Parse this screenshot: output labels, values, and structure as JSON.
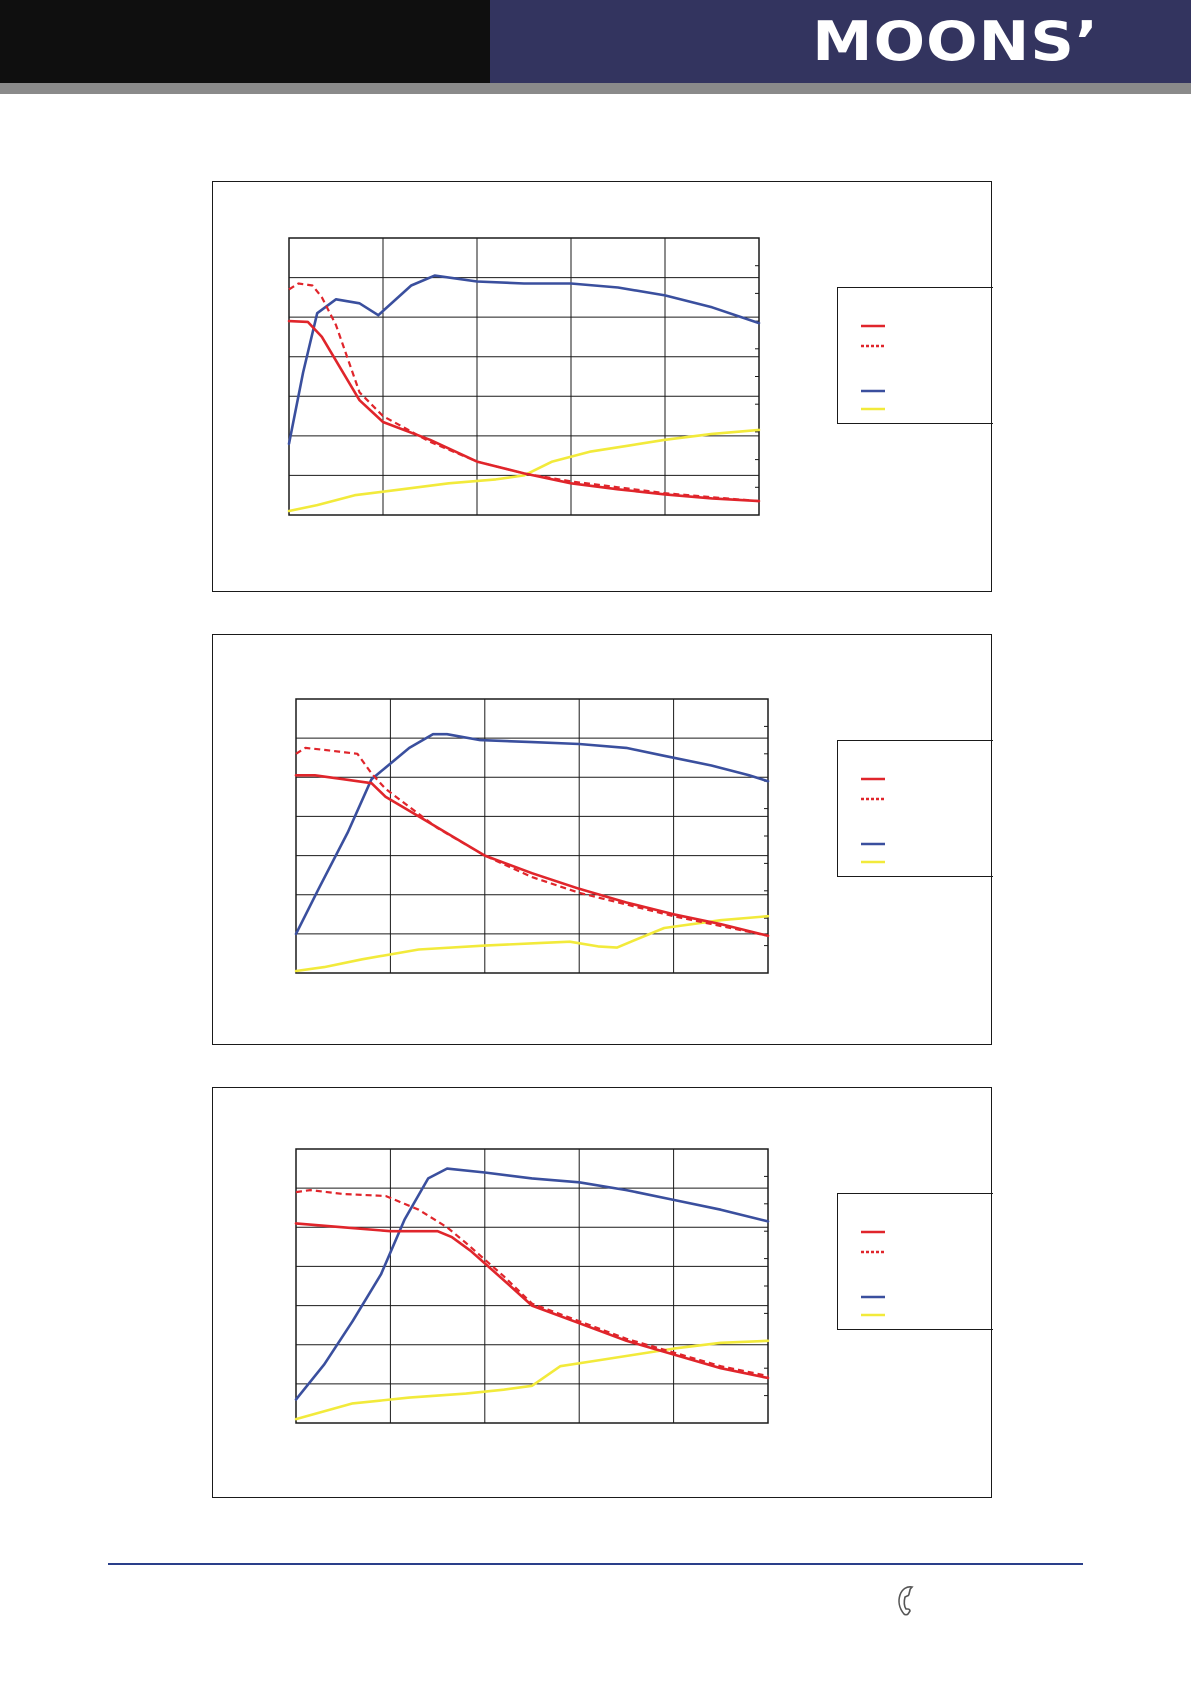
{
  "header": {
    "logo_text": "MOONS’",
    "colors": {
      "left_band": "#0f0f0f",
      "right_band": "#33345f",
      "rule": "#8a8a8a"
    }
  },
  "footer": {
    "icon": "phone-icon",
    "rule_color": "#2a3f8a"
  },
  "series_style": [
    {
      "id": "s1",
      "color": "#e0252b",
      "dash": ""
    },
    {
      "id": "s2",
      "color": "#e0252b",
      "dash": "6,4"
    },
    {
      "id": "s3",
      "color": "#3a4f9e",
      "dash": ""
    },
    {
      "id": "s4",
      "color": "#f2ea3b",
      "dash": ""
    }
  ],
  "chart_data": [
    {
      "type": "line",
      "title": "",
      "xlabel": "",
      "ylabel": "",
      "xlim": [
        0,
        5
      ],
      "ylim": [
        0,
        7
      ],
      "grid": true,
      "legend_placement": "right",
      "series": [
        {
          "values": [
            [
              0,
              4.9
            ],
            [
              0.2,
              4.88
            ],
            [
              0.35,
              4.5
            ],
            [
              0.5,
              3.9
            ],
            [
              0.75,
              2.9
            ],
            [
              1,
              2.35
            ],
            [
              1.5,
              1.9
            ],
            [
              2,
              1.35
            ],
            [
              2.5,
              1.05
            ],
            [
              3,
              0.8
            ],
            [
              3.5,
              0.65
            ],
            [
              4,
              0.52
            ],
            [
              4.5,
              0.42
            ],
            [
              5,
              0.35
            ]
          ]
        },
        {
          "values": [
            [
              0,
              5.7
            ],
            [
              0.1,
              5.85
            ],
            [
              0.25,
              5.8
            ],
            [
              0.35,
              5.5
            ],
            [
              0.5,
              4.8
            ],
            [
              0.75,
              3.1
            ],
            [
              1,
              2.5
            ],
            [
              1.5,
              1.85
            ],
            [
              2,
              1.35
            ],
            [
              2.5,
              1.05
            ],
            [
              3,
              0.85
            ],
            [
              3.5,
              0.7
            ],
            [
              4,
              0.55
            ],
            [
              4.5,
              0.45
            ],
            [
              5,
              0.35
            ]
          ]
        },
        {
          "values": [
            [
              0,
              1.8
            ],
            [
              0.15,
              3.6
            ],
            [
              0.3,
              5.1
            ],
            [
              0.5,
              5.45
            ],
            [
              0.75,
              5.35
            ],
            [
              0.95,
              5.05
            ],
            [
              1.3,
              5.8
            ],
            [
              1.55,
              6.05
            ],
            [
              2,
              5.9
            ],
            [
              2.5,
              5.85
            ],
            [
              3,
              5.85
            ],
            [
              3.5,
              5.75
            ],
            [
              4,
              5.55
            ],
            [
              4.5,
              5.25
            ],
            [
              5,
              4.85
            ]
          ]
        },
        {
          "values": [
            [
              0,
              0.1
            ],
            [
              0.3,
              0.25
            ],
            [
              0.7,
              0.5
            ],
            [
              1.2,
              0.65
            ],
            [
              1.7,
              0.8
            ],
            [
              2.2,
              0.9
            ],
            [
              2.5,
              1.0
            ],
            [
              2.8,
              1.35
            ],
            [
              3.2,
              1.6
            ],
            [
              3.6,
              1.75
            ],
            [
              4,
              1.9
            ],
            [
              4.5,
              2.05
            ],
            [
              5,
              2.15
            ]
          ]
        }
      ]
    },
    {
      "type": "line",
      "title": "",
      "xlabel": "",
      "ylabel": "",
      "xlim": [
        0,
        5
      ],
      "ylim": [
        0,
        7
      ],
      "grid": true,
      "legend_placement": "right",
      "series": [
        {
          "values": [
            [
              0,
              5.05
            ],
            [
              0.2,
              5.05
            ],
            [
              0.5,
              4.95
            ],
            [
              0.8,
              4.85
            ],
            [
              0.95,
              4.5
            ],
            [
              1.3,
              4.0
            ],
            [
              2,
              3.0
            ],
            [
              2.5,
              2.55
            ],
            [
              3,
              2.15
            ],
            [
              3.5,
              1.8
            ],
            [
              4,
              1.5
            ],
            [
              4.5,
              1.25
            ],
            [
              5,
              0.95
            ]
          ]
        },
        {
          "values": [
            [
              0,
              5.6
            ],
            [
              0.1,
              5.75
            ],
            [
              0.3,
              5.7
            ],
            [
              0.65,
              5.6
            ],
            [
              0.8,
              5.1
            ],
            [
              0.95,
              4.7
            ],
            [
              1.5,
              3.7
            ],
            [
              2,
              3.0
            ],
            [
              2.5,
              2.45
            ],
            [
              3,
              2.05
            ],
            [
              3.5,
              1.75
            ],
            [
              4,
              1.45
            ],
            [
              4.5,
              1.2
            ],
            [
              5,
              0.95
            ]
          ]
        },
        {
          "values": [
            [
              0,
              1.0
            ],
            [
              0.25,
              2.2
            ],
            [
              0.55,
              3.6
            ],
            [
              0.8,
              4.95
            ],
            [
              0.95,
              5.25
            ],
            [
              1.2,
              5.75
            ],
            [
              1.45,
              6.1
            ],
            [
              1.6,
              6.1
            ],
            [
              1.95,
              5.95
            ],
            [
              2.5,
              5.9
            ],
            [
              3,
              5.85
            ],
            [
              3.5,
              5.75
            ],
            [
              3.9,
              5.55
            ],
            [
              4.4,
              5.3
            ],
            [
              4.8,
              5.05
            ],
            [
              5,
              4.9
            ]
          ]
        },
        {
          "values": [
            [
              0,
              0.05
            ],
            [
              0.3,
              0.15
            ],
            [
              0.7,
              0.35
            ],
            [
              1.3,
              0.6
            ],
            [
              2,
              0.7
            ],
            [
              2.6,
              0.77
            ],
            [
              2.9,
              0.8
            ],
            [
              3.2,
              0.68
            ],
            [
              3.4,
              0.65
            ],
            [
              3.6,
              0.85
            ],
            [
              3.9,
              1.15
            ],
            [
              4.5,
              1.35
            ],
            [
              5,
              1.45
            ]
          ]
        }
      ]
    },
    {
      "type": "line",
      "title": "",
      "xlabel": "",
      "ylabel": "",
      "xlim": [
        0,
        5
      ],
      "ylim": [
        0,
        7
      ],
      "grid": true,
      "legend_placement": "right",
      "series": [
        {
          "values": [
            [
              0,
              5.1
            ],
            [
              0.5,
              5.0
            ],
            [
              1,
              4.9
            ],
            [
              1.5,
              4.9
            ],
            [
              1.65,
              4.75
            ],
            [
              1.85,
              4.4
            ],
            [
              2.2,
              3.65
            ],
            [
              2.5,
              3.0
            ],
            [
              3,
              2.55
            ],
            [
              3.5,
              2.1
            ],
            [
              4,
              1.75
            ],
            [
              4.5,
              1.4
            ],
            [
              5,
              1.15
            ]
          ]
        },
        {
          "values": [
            [
              0,
              5.9
            ],
            [
              0.15,
              5.95
            ],
            [
              0.5,
              5.85
            ],
            [
              0.95,
              5.8
            ],
            [
              1.3,
              5.45
            ],
            [
              1.6,
              5.0
            ],
            [
              1.8,
              4.6
            ],
            [
              2.2,
              3.75
            ],
            [
              2.5,
              3.05
            ],
            [
              3,
              2.6
            ],
            [
              3.5,
              2.15
            ],
            [
              4,
              1.8
            ],
            [
              4.5,
              1.45
            ],
            [
              5,
              1.2
            ]
          ]
        },
        {
          "values": [
            [
              0,
              0.6
            ],
            [
              0.3,
              1.5
            ],
            [
              0.6,
              2.6
            ],
            [
              0.9,
              3.8
            ],
            [
              1.15,
              5.2
            ],
            [
              1.4,
              6.25
            ],
            [
              1.6,
              6.5
            ],
            [
              2,
              6.4
            ],
            [
              2.5,
              6.25
            ],
            [
              3,
              6.15
            ],
            [
              3.5,
              5.95
            ],
            [
              4,
              5.7
            ],
            [
              4.5,
              5.45
            ],
            [
              5,
              5.15
            ]
          ]
        },
        {
          "values": [
            [
              0,
              0.1
            ],
            [
              0.6,
              0.5
            ],
            [
              1.2,
              0.65
            ],
            [
              1.8,
              0.75
            ],
            [
              2.2,
              0.85
            ],
            [
              2.5,
              0.95
            ],
            [
              2.8,
              1.45
            ],
            [
              3.2,
              1.6
            ],
            [
              3.6,
              1.75
            ],
            [
              4,
              1.9
            ],
            [
              4.5,
              2.05
            ],
            [
              5,
              2.1
            ]
          ]
        }
      ]
    }
  ]
}
